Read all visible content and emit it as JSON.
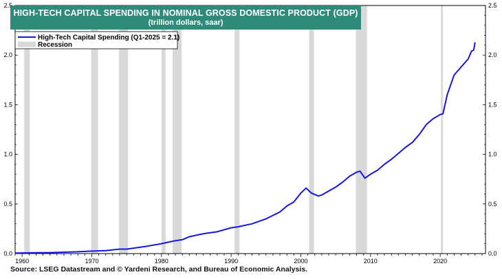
{
  "header": {
    "title": "HIGH-TECH CAPITAL SPENDING IN NOMINAL GROSS DOMESTIC PRODUCT (GDP)",
    "subtitle": "(trillion dollars, saar)"
  },
  "footer": {
    "source": "Source: LSEG Datastream and © Yardeni Research, and Bureau of Economic Analysis."
  },
  "colors": {
    "title_bg": "#2e8b7a",
    "series": "#1414e6",
    "recession": "#d9d9d9",
    "axis": "#000000"
  },
  "chart_data": {
    "type": "line",
    "title": "HIGH-TECH CAPITAL SPENDING IN NOMINAL GROSS DOMESTIC PRODUCT (GDP)",
    "subtitle": "(trillion dollars, saar)",
    "xlim": [
      1959,
      2026.5
    ],
    "ylim": [
      0,
      2.5
    ],
    "x_ticks": [
      "1960",
      "1970",
      "1980",
      "1990",
      "2000",
      "2010",
      "2020"
    ],
    "x_tick_values": [
      1960,
      1970,
      1980,
      1990,
      2000,
      2010,
      2020
    ],
    "y_ticks": [
      "0.0",
      "0.5",
      "1.0",
      "1.5",
      "2.0",
      "2.5"
    ],
    "y_tick_values": [
      0,
      0.5,
      1.0,
      1.5,
      2.0,
      2.5
    ],
    "grid": false,
    "legend_position": "top-left",
    "series": [
      {
        "name": "High-Tech Capital Spending (Q1-2025 = 2.1)",
        "color": "#1414e6",
        "x": [
          1959,
          1960,
          1962,
          1964,
          1966,
          1968,
          1970,
          1972,
          1974,
          1975,
          1976,
          1978,
          1980,
          1981,
          1982,
          1983,
          1984,
          1986,
          1988,
          1990,
          1991,
          1993,
          1995,
          1997,
          1998,
          1999,
          2000,
          2000.75,
          2001.5,
          2002.5,
          2003,
          2004,
          2005,
          2006,
          2007,
          2008,
          2008.5,
          2009.2,
          2010,
          2011,
          2012,
          2013,
          2014,
          2015,
          2016,
          2017,
          2018,
          2019,
          2020,
          2020.4,
          2021,
          2022,
          2023,
          2024,
          2024.5,
          2024.8,
          2025
        ],
        "values": [
          0.005,
          0.006,
          0.008,
          0.01,
          0.014,
          0.018,
          0.025,
          0.03,
          0.045,
          0.045,
          0.055,
          0.075,
          0.1,
          0.115,
          0.13,
          0.14,
          0.17,
          0.2,
          0.22,
          0.26,
          0.27,
          0.3,
          0.35,
          0.42,
          0.48,
          0.52,
          0.61,
          0.66,
          0.61,
          0.58,
          0.59,
          0.63,
          0.67,
          0.72,
          0.78,
          0.82,
          0.83,
          0.76,
          0.8,
          0.84,
          0.9,
          0.95,
          1.01,
          1.07,
          1.12,
          1.2,
          1.3,
          1.36,
          1.4,
          1.41,
          1.6,
          1.8,
          1.88,
          1.96,
          2.04,
          2.05,
          2.13
        ]
      },
      {
        "name": "Recession",
        "type": "band",
        "color": "#d9d9d9"
      }
    ],
    "recessions": [
      [
        1960.3,
        1961.1
      ],
      [
        1969.9,
        1970.9
      ],
      [
        1973.9,
        1975.2
      ],
      [
        1980.0,
        1980.6
      ],
      [
        1981.6,
        1982.9
      ],
      [
        1990.5,
        1991.2
      ],
      [
        2001.2,
        2001.9
      ],
      [
        2007.9,
        2009.5
      ],
      [
        2020.1,
        2020.4
      ]
    ]
  }
}
